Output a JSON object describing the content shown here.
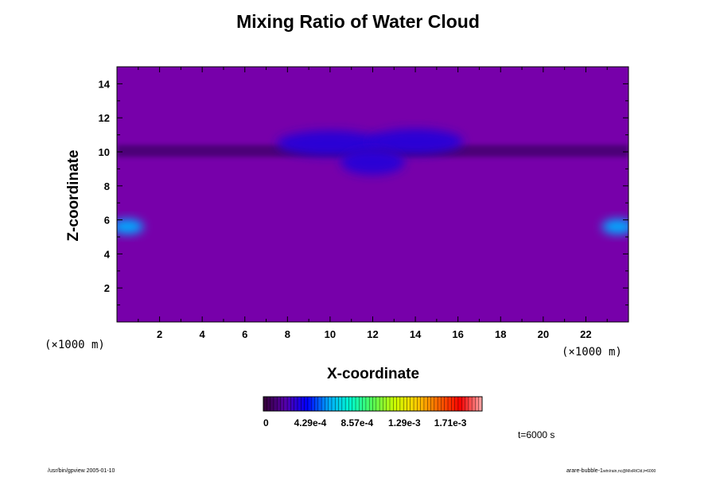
{
  "chart_data": {
    "type": "heatmap",
    "title": "Mixing Ratio of Water Cloud",
    "xlabel": "X-coordinate",
    "ylabel": "Z-coordinate",
    "x_unit": "(×1000 m)",
    "y_unit": "(×1000 m)",
    "xlim": [
      0,
      24
    ],
    "ylim": [
      0,
      15
    ],
    "x_ticks": [
      "2",
      "4",
      "6",
      "8",
      "10",
      "12",
      "14",
      "16",
      "18",
      "20",
      "22"
    ],
    "y_ticks": [
      "2",
      "4",
      "6",
      "8",
      "10",
      "12",
      "14"
    ],
    "background_color": "#7700aa",
    "colorbar": {
      "min": 0,
      "max": 0.002,
      "labels": [
        "0",
        "4.29e-4",
        "8.57e-4",
        "1.29e-3",
        "1.71e-3"
      ],
      "label_values": [
        0,
        0.000429,
        0.000857,
        0.00129,
        0.00171
      ],
      "stops": [
        "#330033",
        "#5500aa",
        "#0000ff",
        "#00aaff",
        "#00ffcc",
        "#55ff55",
        "#ccff00",
        "#ffcc00",
        "#ff6600",
        "#ff0000",
        "#ffaaaa"
      ]
    },
    "features": [
      {
        "kind": "layer",
        "x": [
          0,
          24
        ],
        "z": [
          9.7,
          10.4
        ],
        "value": 0.0001
      },
      {
        "kind": "cloud",
        "center": [
          10,
          10.5
        ],
        "size": [
          5,
          1.5
        ],
        "value": 0.0003
      },
      {
        "kind": "cloud",
        "center": [
          14,
          10.6
        ],
        "size": [
          4.5,
          1.5
        ],
        "value": 0.0003
      },
      {
        "kind": "cloud",
        "center": [
          12,
          9.4
        ],
        "size": [
          3,
          1.5
        ],
        "value": 0.0003
      },
      {
        "kind": "cloud",
        "center": [
          0.5,
          5.6
        ],
        "size": [
          1.5,
          0.9
        ],
        "value": 0.0006
      },
      {
        "kind": "cloud",
        "center": [
          23.5,
          5.6
        ],
        "size": [
          1.5,
          0.9
        ],
        "value": 0.0006
      }
    ]
  },
  "time_label": "t=6000 s",
  "footer_left": "/usr/bin/gpview 2005-01-10",
  "footer_right": "arare-bubble-1",
  "footer_right_sub": "wtn/rain,nc@MixRtCld,t=6000"
}
